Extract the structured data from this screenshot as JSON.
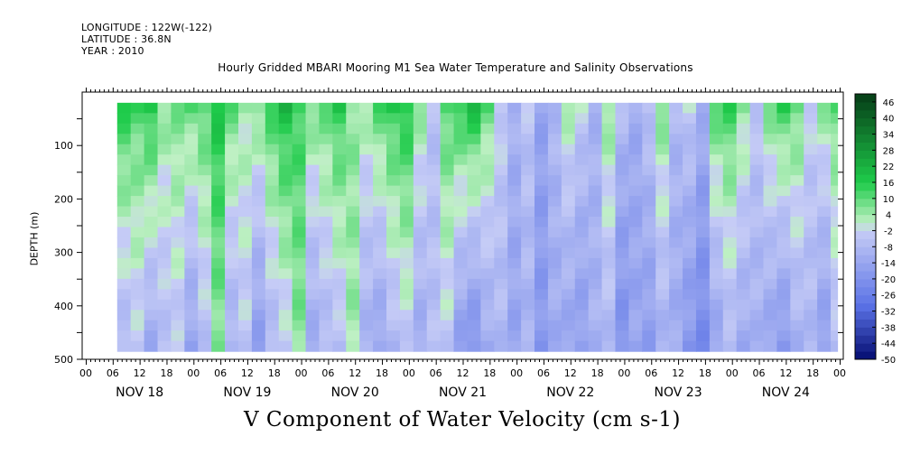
{
  "header": {
    "longitude": "LONGITUDE : 122W(-122)",
    "latitude": "LATITUDE : 36.8N",
    "year": "YEAR : 2010",
    "title": "Hourly Gridded MBARI Mooring M1 Sea Water Temperature and Salinity Observations"
  },
  "footer": {
    "variable_title": "V Component of Water Velocity (cm s-1)"
  },
  "chart_data": {
    "type": "heatmap",
    "title": "Hourly Gridded MBARI Mooring M1 Sea Water Temperature and Salinity Observations",
    "xlabel": "",
    "ylabel": "DEPTH (m)",
    "variable": "V Component of Water Velocity (cm s-1)",
    "y_range_m": [
      0,
      500
    ],
    "y_ticks": [
      100,
      200,
      300,
      400,
      500
    ],
    "x_range_hours": [
      0,
      168
    ],
    "x_hour_ticks": [
      "00",
      "06",
      "12",
      "18",
      "00",
      "06",
      "12",
      "18",
      "00",
      "06",
      "12",
      "18",
      "00",
      "06",
      "12",
      "18",
      "00",
      "06",
      "12",
      "18",
      "00",
      "06",
      "12",
      "18",
      "00",
      "06",
      "12",
      "18",
      "00"
    ],
    "x_day_labels": [
      "NOV 18",
      "NOV 19",
      "NOV 20",
      "NOV 21",
      "NOV 22",
      "NOV 23",
      "NOV 24"
    ],
    "data_start_hour": 7,
    "data_depth_range_m": [
      20,
      485
    ],
    "colorbar_labels": [
      "46",
      "40",
      "34",
      "28",
      "22",
      "16",
      "10",
      "4",
      "-2",
      "-8",
      "-14",
      "-20",
      "-26",
      "-32",
      "-38",
      "-44",
      "-50"
    ],
    "colorbar_range": [
      -50,
      49
    ],
    "colorbar_colors": {
      "max": "#063d17",
      "mid_pos": "#1ecb4a",
      "zero": "#bff0c4",
      "neg_light": "#c6ccf6",
      "mid_neg": "#5a72e6",
      "min": "#040c70"
    },
    "profile_hours": [
      7,
      10,
      13,
      16,
      19,
      22,
      25,
      28,
      31,
      34,
      37,
      40,
      43,
      46,
      49,
      52,
      55,
      58,
      61,
      64,
      67,
      70,
      73,
      76,
      79,
      82,
      85,
      88,
      91,
      94,
      97,
      100,
      103,
      106,
      109,
      112,
      115,
      118,
      121,
      124,
      127,
      130,
      133,
      136,
      139,
      142,
      145,
      148,
      151,
      154,
      157,
      160,
      163,
      166
    ],
    "surface_values": [
      16,
      12,
      18,
      6,
      8,
      10,
      12,
      18,
      10,
      4,
      8,
      14,
      20,
      14,
      8,
      10,
      16,
      6,
      4,
      12,
      16,
      18,
      6,
      -6,
      12,
      16,
      20,
      10,
      -2,
      -10,
      -4,
      -14,
      -8,
      4,
      -2,
      -10,
      6,
      -6,
      -12,
      -4,
      8,
      -8,
      -2,
      -10,
      12,
      14,
      6,
      -4,
      8,
      14,
      10,
      -2,
      6,
      10
    ],
    "deep_values": [
      -8,
      -4,
      -12,
      -6,
      -4,
      -14,
      -6,
      6,
      -10,
      -4,
      -16,
      -8,
      -4,
      6,
      -12,
      -8,
      -6,
      4,
      -10,
      -14,
      -8,
      -4,
      -12,
      -6,
      -4,
      -16,
      -20,
      -12,
      -8,
      -14,
      -10,
      -18,
      -12,
      -14,
      -16,
      -10,
      -8,
      -20,
      -14,
      -16,
      -10,
      -12,
      -18,
      -22,
      -14,
      -8,
      -12,
      -10,
      -14,
      -18,
      -10,
      -8,
      -16,
      -6
    ],
    "grid": false,
    "legend_position": "right colorbar"
  }
}
